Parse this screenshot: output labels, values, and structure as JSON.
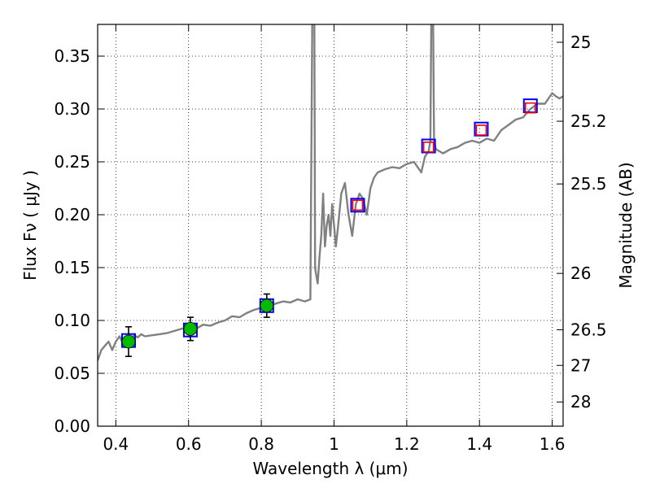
{
  "chart_data": {
    "type": "scatter",
    "xlabel": "Wavelength  λ (μm)",
    "ylabel": "Flux  Fν  ( μJy )",
    "y2label": "Magnitude (AB)",
    "xlim": [
      0.35,
      1.63
    ],
    "ylim": [
      0.0,
      0.38
    ],
    "grid": true,
    "x_ticks": [
      0.4,
      0.6,
      0.8,
      1.0,
      1.2,
      1.4,
      1.6
    ],
    "x_tick_labels": [
      "0.4",
      "0.6",
      "0.8",
      "1",
      "1.2",
      "1.4",
      "1.6"
    ],
    "y_ticks": [
      0.0,
      0.05,
      0.1,
      0.15,
      0.2,
      0.25,
      0.3,
      0.35
    ],
    "y_tick_labels": [
      "0.00",
      "0.05",
      "0.10",
      "0.15",
      "0.20",
      "0.25",
      "0.30",
      "0.35"
    ],
    "y2_ticks": [
      {
        "flux": 0.3631,
        "label": "25"
      },
      {
        "flux": 0.2884,
        "label": "25.2"
      },
      {
        "flux": 0.2291,
        "label": "25.5"
      },
      {
        "flux": 0.1445,
        "label": "26"
      },
      {
        "flux": 0.0912,
        "label": "26.5"
      },
      {
        "flux": 0.0575,
        "label": "27"
      },
      {
        "flux": 0.0229,
        "label": "28"
      }
    ],
    "sed_model": {
      "color": "#808080",
      "x": [
        0.35,
        0.36,
        0.37,
        0.38,
        0.39,
        0.4,
        0.41,
        0.42,
        0.43,
        0.44,
        0.45,
        0.46,
        0.47,
        0.48,
        0.5,
        0.52,
        0.54,
        0.56,
        0.58,
        0.6,
        0.62,
        0.64,
        0.66,
        0.68,
        0.7,
        0.72,
        0.74,
        0.76,
        0.78,
        0.8,
        0.82,
        0.84,
        0.86,
        0.88,
        0.9,
        0.92,
        0.935,
        0.94,
        0.945,
        0.948,
        0.95,
        0.955,
        0.96,
        0.965,
        0.97,
        0.975,
        0.98,
        0.985,
        0.99,
        0.995,
        1.0,
        1.005,
        1.01,
        1.02,
        1.03,
        1.04,
        1.05,
        1.06,
        1.07,
        1.08,
        1.09,
        1.1,
        1.11,
        1.12,
        1.14,
        1.16,
        1.18,
        1.2,
        1.22,
        1.24,
        1.25,
        1.26,
        1.265,
        1.27,
        1.275,
        1.28,
        1.29,
        1.3,
        1.32,
        1.34,
        1.36,
        1.38,
        1.4,
        1.42,
        1.44,
        1.46,
        1.48,
        1.5,
        1.52,
        1.54,
        1.56,
        1.58,
        1.59,
        1.6,
        1.61,
        1.62,
        1.63
      ],
      "y": [
        0.062,
        0.072,
        0.076,
        0.08,
        0.072,
        0.08,
        0.085,
        0.078,
        0.084,
        0.082,
        0.086,
        0.084,
        0.087,
        0.085,
        0.086,
        0.087,
        0.088,
        0.09,
        0.092,
        0.094,
        0.092,
        0.096,
        0.095,
        0.098,
        0.1,
        0.104,
        0.103,
        0.107,
        0.11,
        0.112,
        0.113,
        0.116,
        0.118,
        0.117,
        0.12,
        0.118,
        0.12,
        0.38,
        0.5,
        0.15,
        0.145,
        0.135,
        0.16,
        0.18,
        0.22,
        0.17,
        0.19,
        0.2,
        0.18,
        0.21,
        0.19,
        0.17,
        0.185,
        0.22,
        0.23,
        0.2,
        0.18,
        0.21,
        0.22,
        0.215,
        0.2,
        0.225,
        0.235,
        0.24,
        0.243,
        0.245,
        0.244,
        0.248,
        0.25,
        0.24,
        0.255,
        0.26,
        0.27,
        0.5,
        0.27,
        0.262,
        0.26,
        0.258,
        0.262,
        0.264,
        0.268,
        0.27,
        0.268,
        0.272,
        0.27,
        0.28,
        0.285,
        0.29,
        0.292,
        0.3,
        0.305,
        0.305,
        0.31,
        0.315,
        0.312,
        0.31,
        0.312
      ]
    },
    "series": [
      {
        "marker": "open-square",
        "color": "#0000ff",
        "x": [
          0.435,
          0.605,
          0.815,
          1.065,
          1.26,
          1.405,
          1.54
        ],
        "y": [
          0.081,
          0.091,
          0.114,
          0.209,
          0.265,
          0.281,
          0.303
        ]
      },
      {
        "marker": "open-square",
        "color": "#ff0000",
        "x": [
          1.065,
          1.26,
          1.405,
          1.54
        ],
        "y": [
          0.209,
          0.264,
          0.28,
          0.301
        ]
      },
      {
        "marker": "filled-circle-with-errorbar",
        "color": "#00bb00",
        "x": [
          0.435,
          0.605,
          0.815
        ],
        "y": [
          0.08,
          0.092,
          0.114
        ],
        "yerr": [
          0.014,
          0.011,
          0.011
        ]
      }
    ]
  }
}
